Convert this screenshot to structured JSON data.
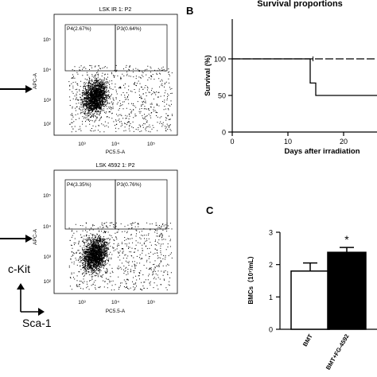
{
  "panels": {
    "flow_top": {
      "title": "LSK IR 1: P2",
      "gate_left": "P4(2.67%)",
      "gate_right": "P3(0.64%)",
      "xlabel": "PC5.5-A",
      "ylabel": "APC-A",
      "xticks": [
        "10³",
        "10⁴",
        "10⁵"
      ],
      "yticks": [
        "10⁵",
        "10⁴",
        "10³",
        "10²"
      ]
    },
    "flow_bottom": {
      "title": "LSK 4592 1: P2",
      "gate_left": "P4(3.35%)",
      "gate_right": "P3(0.76%)",
      "xlabel": "PC5.5-A",
      "ylabel": "APC-A",
      "xticks": [
        "10³",
        "10⁴",
        "10⁵"
      ],
      "yticks": [
        "10⁵",
        "10⁴",
        "10³",
        "10²"
      ]
    },
    "axis_legend": {
      "y_marker": "c-Kit",
      "x_marker": "Sca-1"
    },
    "B": {
      "panel_letter": "B",
      "chart_data": {
        "type": "line",
        "step": true,
        "title": "Survival proportions",
        "xlabel": "Days after irradiation",
        "ylabel": "Survival (%)",
        "xlim": [
          0,
          27
        ],
        "ylim": [
          0,
          100
        ],
        "xticks": [
          "0",
          "10",
          "20"
        ],
        "yticks": [
          "0",
          "50",
          "100"
        ],
        "series": [
          {
            "x": [
              0,
              27
            ],
            "y": [
              100,
              100
            ],
            "style": "dashed"
          },
          {
            "x": [
              0,
              14,
              14,
              15,
              15,
              27
            ],
            "y": [
              100,
              100,
              67,
              67,
              50,
              50
            ],
            "style": "solid"
          }
        ]
      }
    },
    "C": {
      "panel_letter": "C",
      "chart_data": {
        "type": "bar",
        "categories": [
          "BMT",
          "BMT+FG-4592"
        ],
        "values": [
          1.8,
          2.38
        ],
        "errors": [
          0.25,
          0.15
        ],
        "bar_colors": [
          "#ffffff",
          "#000000"
        ],
        "ylabel": "BMCs（10⁷/mL）",
        "ylim": [
          0,
          3
        ],
        "yticks": [
          "0",
          "1",
          "2",
          "3"
        ],
        "annotation": "*"
      }
    }
  }
}
